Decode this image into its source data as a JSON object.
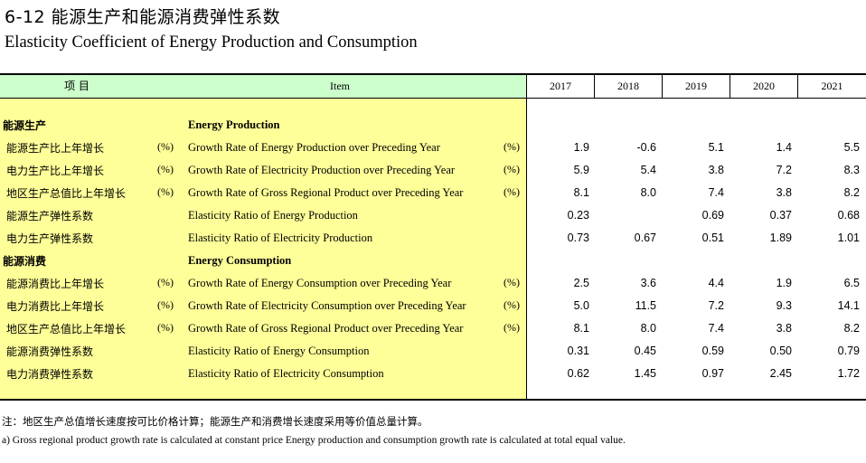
{
  "title": {
    "cn": "6-12   能源生产和能源消费弹性系数",
    "en": "Elasticity Coefficient of Energy Production and Consumption"
  },
  "header": {
    "item_cn": "项    目",
    "item_en": "Item",
    "years": [
      "2017",
      "2018",
      "2019",
      "2020",
      "2021"
    ]
  },
  "rows": [
    {
      "cn": "能源生产",
      "pct_cn": "",
      "en": "Energy Production",
      "pct_en": "",
      "values": [
        "",
        "",
        "",
        "",
        ""
      ],
      "section": true
    },
    {
      "cn": "能源生产比上年增长",
      "pct_cn": "(%)",
      "en": "Growth Rate of Energy Production   over Preceding Year",
      "pct_en": "(%)",
      "values": [
        "1.9",
        "-0.6",
        "5.1",
        "1.4",
        "5.5"
      ]
    },
    {
      "cn": "电力生产比上年增长",
      "pct_cn": "(%)",
      "en": "Growth Rate of Electricity Production   over Preceding Year",
      "pct_en": "(%)",
      "values": [
        "5.9",
        "5.4",
        "3.8",
        "7.2",
        "8.3"
      ]
    },
    {
      "cn": "地区生产总值比上年增长",
      "pct_cn": "(%)",
      "en": "Growth Rate of Gross Regional Product   over Preceding Year",
      "pct_en": "(%)",
      "values": [
        "8.1",
        "8.0",
        "7.4",
        "3.8",
        "8.2"
      ]
    },
    {
      "cn": "能源生产弹性系数",
      "pct_cn": "",
      "en": "Elasticity Ratio of Energy Production",
      "pct_en": "",
      "values": [
        "0.23",
        "",
        "0.69",
        "0.37",
        "0.68"
      ]
    },
    {
      "cn": "电力生产弹性系数",
      "pct_cn": "",
      "en": "Elasticity Ratio of Electricity Production",
      "pct_en": "",
      "values": [
        "0.73",
        "0.67",
        "0.51",
        "1.89",
        "1.01"
      ]
    },
    {
      "cn": "能源消费",
      "pct_cn": "",
      "en": "Energy Consumption",
      "pct_en": "",
      "values": [
        "",
        "",
        "",
        "",
        ""
      ],
      "section": true
    },
    {
      "cn": "能源消费比上年增长",
      "pct_cn": "(%)",
      "en": "Growth Rate of Energy Consumption   over Preceding Year",
      "pct_en": "(%)",
      "values": [
        "2.5",
        "3.6",
        "4.4",
        "1.9",
        "6.5"
      ]
    },
    {
      "cn": "电力消费比上年增长",
      "pct_cn": "(%)",
      "en": "Growth Rate of Electricity Consumption   over Preceding Year",
      "pct_en": "(%)",
      "values": [
        "5.0",
        "11.5",
        "7.2",
        "9.3",
        "14.1"
      ]
    },
    {
      "cn": "地区生产总值比上年增长",
      "pct_cn": "(%)",
      "en": "Growth Rate of Gross Regional Product   over Preceding Year",
      "pct_en": "(%)",
      "values": [
        "8.1",
        "8.0",
        "7.4",
        "3.8",
        "8.2"
      ]
    },
    {
      "cn": "能源消费弹性系数",
      "pct_cn": "",
      "en": "Elasticity Ratio of Energy Consumption",
      "pct_en": "",
      "values": [
        "0.31",
        "0.45",
        "0.59",
        "0.50",
        "0.79"
      ]
    },
    {
      "cn": "电力消费弹性系数",
      "pct_cn": "",
      "en": "Elasticity Ratio of Electricity Consumption",
      "pct_en": "",
      "values": [
        "0.62",
        "1.45",
        "0.97",
        "2.45",
        "1.72"
      ]
    }
  ],
  "notes": {
    "cn": "注：地区生产总值增长速度按可比价格计算；能源生产和消费增长速度采用等价值总量计算。",
    "en": "a) Gross regional product  growth rate is calculated at constant price Energy production and consumption growth rate is calculated at total equal value."
  },
  "colors": {
    "item_area": "#ffff99",
    "header_area": "#ccffcc"
  }
}
